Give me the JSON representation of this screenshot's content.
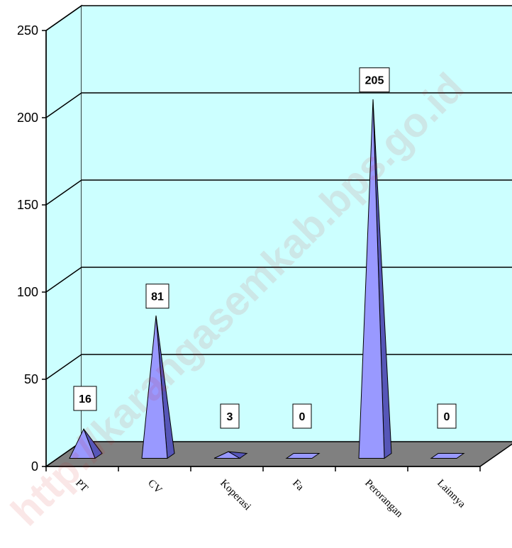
{
  "chart_data": {
    "type": "bar",
    "style": "3d-pyramid",
    "title": "",
    "xlabel": "",
    "ylabel": "",
    "categories": [
      "PT",
      "CV",
      "Koperasi",
      "Fa",
      "Perorangan",
      "Lainnya"
    ],
    "values": [
      16,
      81,
      3,
      0,
      205,
      0
    ],
    "data_labels": [
      "16",
      "81",
      "3",
      "0",
      "205",
      "0"
    ],
    "ylim": [
      0,
      250
    ],
    "yticks": [
      "0",
      "50",
      "100",
      "150",
      "200",
      "250"
    ],
    "grid": true,
    "legend": "none",
    "colors": {
      "wall": "#ccffff",
      "floor": "#808080",
      "bar_front": "#9999ff",
      "bar_side": "#5656b8",
      "watermark": "#d01010"
    }
  },
  "watermark": "http://karangasemkab.bps.go.id"
}
